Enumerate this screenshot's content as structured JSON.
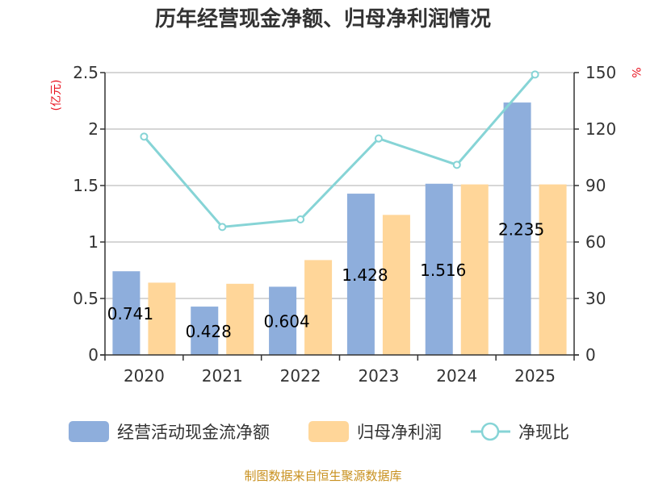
{
  "chart_data": {
    "type": "bar",
    "title": "历年经营现金净额、归母净利润情况",
    "categories": [
      "2020",
      "2021",
      "2022",
      "2023",
      "2024",
      "2025"
    ],
    "y_left": {
      "unit": "(亿元)",
      "ylim": [
        0,
        2.5
      ],
      "ticks": [
        "0",
        "0.5",
        "1",
        "1.5",
        "2",
        "2.5"
      ]
    },
    "y_right": {
      "unit": "%",
      "ylim": [
        0,
        150
      ],
      "ticks": [
        "0",
        "30",
        "60",
        "90",
        "120",
        "150"
      ]
    },
    "series": [
      {
        "name": "经营活动现金流净额",
        "type": "bar",
        "axis": "left",
        "color": "#8eaedc",
        "values": [
          0.741,
          0.428,
          0.604,
          1.428,
          1.516,
          2.235
        ],
        "labels": [
          "0.741",
          "0.428",
          "0.604",
          "1.428",
          "1.516",
          "2.235"
        ]
      },
      {
        "name": "归母净利润",
        "type": "bar",
        "axis": "left",
        "color": "#ffd699",
        "values": [
          0.64,
          0.63,
          0.84,
          1.24,
          1.51,
          1.51
        ]
      },
      {
        "name": "净现比",
        "type": "line",
        "axis": "right",
        "color": "#86d4d6",
        "values": [
          116,
          68,
          72,
          115,
          101,
          149
        ]
      }
    ],
    "grid": true,
    "legend_position": "bottom"
  },
  "source": "制图数据来自恒生聚源数据库"
}
